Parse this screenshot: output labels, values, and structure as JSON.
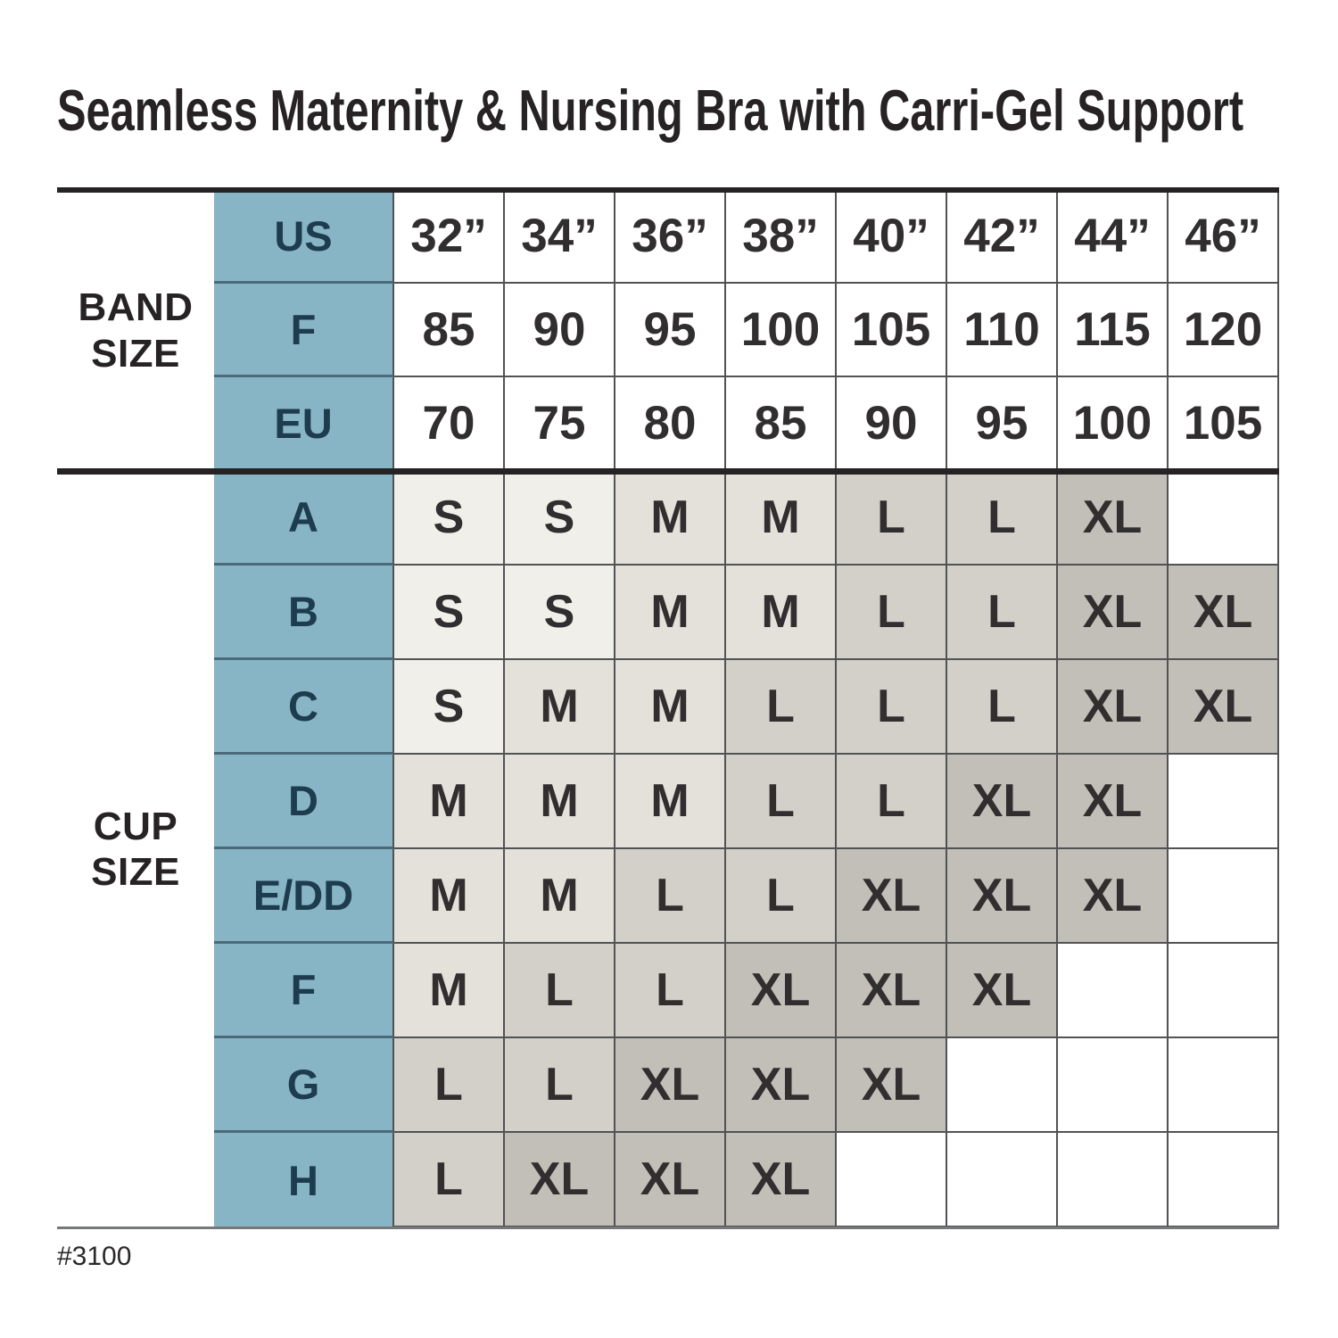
{
  "title": "Seamless Maternity & Nursing Bra with Carri-Gel Support",
  "footnote": "#3100",
  "chart_data": {
    "type": "table",
    "title": "Seamless Maternity & Nursing Bra with Carri-Gel Support",
    "style_number": "#3100",
    "column_headers": [
      "32”",
      "34”",
      "36”",
      "38”",
      "40”",
      "42”",
      "44”",
      "46”"
    ],
    "row_groups": [
      {
        "label": "BAND SIZE",
        "rows": [
          {
            "header": "US",
            "cells": [
              "32”",
              "34”",
              "36”",
              "38”",
              "40”",
              "42”",
              "44”",
              "46”"
            ]
          },
          {
            "header": "F",
            "cells": [
              "85",
              "90",
              "95",
              "100",
              "105",
              "110",
              "115",
              "120"
            ]
          },
          {
            "header": "EU",
            "cells": [
              "70",
              "75",
              "80",
              "85",
              "90",
              "95",
              "100",
              "105"
            ]
          }
        ]
      },
      {
        "label": "CUP SIZE",
        "rows": [
          {
            "header": "A",
            "cells": [
              "S",
              "S",
              "M",
              "M",
              "L",
              "L",
              "XL",
              null
            ]
          },
          {
            "header": "B",
            "cells": [
              "S",
              "S",
              "M",
              "M",
              "L",
              "L",
              "XL",
              "XL"
            ]
          },
          {
            "header": "C",
            "cells": [
              "S",
              "M",
              "M",
              "L",
              "L",
              "L",
              "XL",
              "XL"
            ]
          },
          {
            "header": "D",
            "cells": [
              "M",
              "M",
              "M",
              "L",
              "L",
              "XL",
              "XL",
              null
            ]
          },
          {
            "header": "E/DD",
            "cells": [
              "M",
              "M",
              "L",
              "L",
              "XL",
              "XL",
              "XL",
              null
            ]
          },
          {
            "header": "F",
            "cells": [
              "M",
              "L",
              "L",
              "XL",
              "XL",
              "XL",
              null,
              null
            ]
          },
          {
            "header": "G",
            "cells": [
              "L",
              "L",
              "XL",
              "XL",
              "XL",
              null,
              null,
              null
            ]
          },
          {
            "header": "H",
            "cells": [
              "L",
              "XL",
              "XL",
              "XL",
              null,
              null,
              null,
              null
            ]
          }
        ]
      }
    ],
    "size_cell_colors": {
      "S": "#f1efea",
      "M": "#e4e1db",
      "L": "#d3d0ca",
      "XL": "#c2beb8",
      "empty": "#ffffff"
    },
    "accent_color": "#88b5c6",
    "accent_text_color": "#1d3c4d",
    "grid_line_color": "#515254",
    "thick_rule_color": "#262324"
  }
}
